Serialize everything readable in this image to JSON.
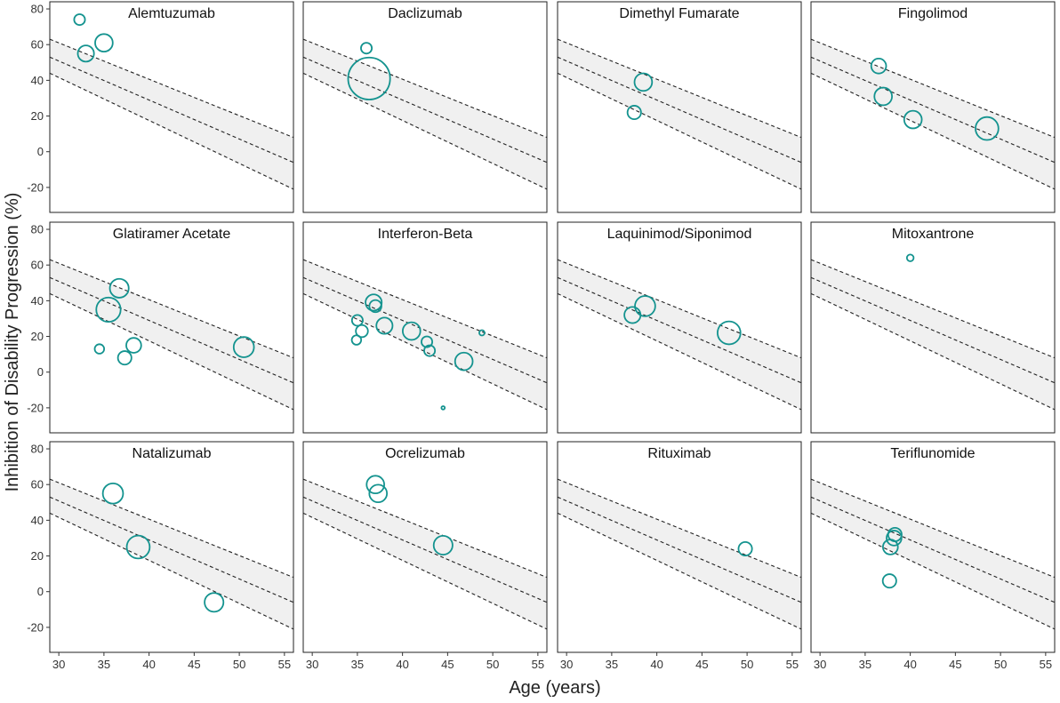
{
  "chart_data": {
    "type": "scatter",
    "subtype": "bubble-facets-with-regression",
    "xlabel": "Age (years)",
    "ylabel": "Inhibition of Disability Progression (%)",
    "xlim": [
      29,
      56
    ],
    "ylim": [
      -34,
      84
    ],
    "x_ticks": [
      30,
      35,
      40,
      45,
      50,
      55
    ],
    "y_ticks": [
      -20,
      0,
      20,
      40,
      60,
      80
    ],
    "regression": {
      "x_range": [
        29,
        56
      ],
      "fit": [
        53,
        -6
      ],
      "upper": [
        63,
        8
      ],
      "lower": [
        44,
        -21
      ]
    },
    "colors": {
      "points": "#14938f",
      "band": "#f0f0f0",
      "line": "#222222",
      "frame": "#222222"
    },
    "panels": [
      {
        "title": "Alemtuzumab",
        "points": [
          {
            "x": 32.3,
            "y": 74,
            "size": 0.8
          },
          {
            "x": 33.0,
            "y": 55,
            "size": 1.2
          },
          {
            "x": 35.0,
            "y": 61,
            "size": 1.3
          }
        ]
      },
      {
        "title": "Daclizumab",
        "points": [
          {
            "x": 36.0,
            "y": 58,
            "size": 0.8
          },
          {
            "x": 36.3,
            "y": 41,
            "size": 3.1
          }
        ]
      },
      {
        "title": "Dimethyl Fumarate",
        "points": [
          {
            "x": 38.5,
            "y": 39,
            "size": 1.3
          },
          {
            "x": 37.5,
            "y": 22,
            "size": 1.0
          }
        ]
      },
      {
        "title": "Fingolimod",
        "points": [
          {
            "x": 36.5,
            "y": 48,
            "size": 1.1
          },
          {
            "x": 37.0,
            "y": 31,
            "size": 1.3
          },
          {
            "x": 40.3,
            "y": 18,
            "size": 1.3
          },
          {
            "x": 48.5,
            "y": 13,
            "size": 1.7
          }
        ]
      },
      {
        "title": "Glatiramer Acetate",
        "points": [
          {
            "x": 36.7,
            "y": 47,
            "size": 1.4
          },
          {
            "x": 35.5,
            "y": 35,
            "size": 1.8
          },
          {
            "x": 38.3,
            "y": 15,
            "size": 1.1
          },
          {
            "x": 34.5,
            "y": 13,
            "size": 0.7
          },
          {
            "x": 37.3,
            "y": 8,
            "size": 1.0
          },
          {
            "x": 50.5,
            "y": 14,
            "size": 1.5
          }
        ]
      },
      {
        "title": "Interferon-Beta",
        "points": [
          {
            "x": 36.8,
            "y": 39,
            "size": 1.2
          },
          {
            "x": 37.0,
            "y": 37,
            "size": 0.9
          },
          {
            "x": 35.0,
            "y": 29,
            "size": 0.8
          },
          {
            "x": 35.5,
            "y": 23,
            "size": 0.9
          },
          {
            "x": 34.9,
            "y": 18,
            "size": 0.7
          },
          {
            "x": 38.0,
            "y": 26,
            "size": 1.2
          },
          {
            "x": 41.0,
            "y": 23,
            "size": 1.3
          },
          {
            "x": 42.7,
            "y": 17,
            "size": 0.8
          },
          {
            "x": 43.0,
            "y": 12,
            "size": 0.8
          },
          {
            "x": 46.8,
            "y": 6,
            "size": 1.3
          },
          {
            "x": 48.8,
            "y": 22,
            "size": 0.4
          },
          {
            "x": 44.5,
            "y": -20,
            "size": 0.25
          }
        ]
      },
      {
        "title": "Laquinimod/Siponimod",
        "points": [
          {
            "x": 38.7,
            "y": 37,
            "size": 1.5
          },
          {
            "x": 37.3,
            "y": 32,
            "size": 1.2
          },
          {
            "x": 48.0,
            "y": 22,
            "size": 1.7
          }
        ]
      },
      {
        "title": "Mitoxantrone",
        "points": [
          {
            "x": 40.0,
            "y": 64,
            "size": 0.5
          }
        ]
      },
      {
        "title": "Natalizumab",
        "points": [
          {
            "x": 36.0,
            "y": 55,
            "size": 1.5
          },
          {
            "x": 38.8,
            "y": 25,
            "size": 1.7
          },
          {
            "x": 47.2,
            "y": -6,
            "size": 1.4
          }
        ]
      },
      {
        "title": "Ocrelizumab",
        "points": [
          {
            "x": 37.0,
            "y": 60,
            "size": 1.3
          },
          {
            "x": 37.3,
            "y": 55,
            "size": 1.3
          },
          {
            "x": 44.5,
            "y": 26,
            "size": 1.4
          }
        ]
      },
      {
        "title": "Rituximab",
        "points": [
          {
            "x": 49.8,
            "y": 24,
            "size": 1.0
          }
        ]
      },
      {
        "title": "Teriflunomide",
        "points": [
          {
            "x": 38.3,
            "y": 32,
            "size": 1.0
          },
          {
            "x": 38.2,
            "y": 30,
            "size": 1.1
          },
          {
            "x": 37.8,
            "y": 25,
            "size": 1.1
          },
          {
            "x": 37.7,
            "y": 6,
            "size": 1.0
          }
        ]
      }
    ]
  }
}
